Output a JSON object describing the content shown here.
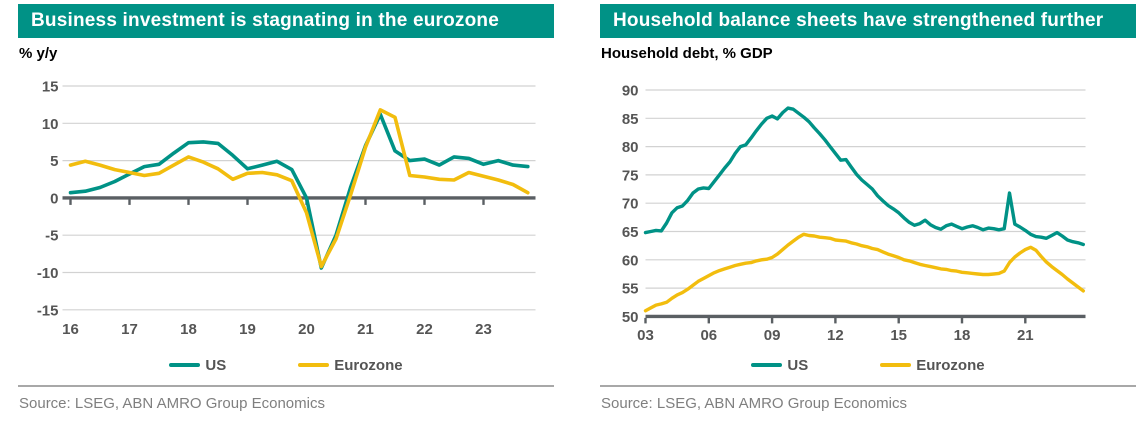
{
  "colors": {
    "teal": "#009286",
    "yellow": "#F2BD0E",
    "header_bg": "#009286",
    "header_text": "#FFFFFF",
    "axis_label": "#555555",
    "legend_text": "#545454",
    "gridline": "#D2D2D2",
    "axis_line": "#5A5F63",
    "separator": "#A8A8A8",
    "source_text": "#7F7F7F"
  },
  "panels": [
    {
      "title": "Business investment is stagnating in the eurozone",
      "subtitle": "% y/y",
      "source": "Source: LSEG, ABN AMRO Group Economics"
    },
    {
      "title": "Household balance sheets have strengthened further",
      "subtitle": "Household debt, % GDP",
      "source": "Source:  LSEG, ABN AMRO Group Economics"
    }
  ],
  "chart_data": [
    {
      "type": "line",
      "title": "Business investment is stagnating in the eurozone",
      "ylabel": "% y/y",
      "xlabel": "",
      "x_start": 2016.0,
      "x_step": 0.25,
      "ylim": [
        -15,
        15
      ],
      "y_ticks": [
        15,
        10,
        5,
        0,
        -5,
        -10,
        -15
      ],
      "baseline": 0,
      "grid": "horizontal",
      "legend_position": "bottom",
      "x_ticks": {
        "values": [
          2016,
          2017,
          2018,
          2019,
          2020,
          2021,
          2022,
          2023
        ],
        "labels": [
          "16",
          "17",
          "18",
          "19",
          "20",
          "21",
          "22",
          "23"
        ]
      },
      "series": [
        {
          "name": "US",
          "color": "teal",
          "values": [
            0.7,
            0.9,
            1.4,
            2.2,
            3.2,
            4.2,
            4.5,
            6.0,
            7.4,
            7.5,
            7.3,
            5.7,
            3.9,
            4.4,
            4.9,
            3.8,
            0.0,
            -9.4,
            -5.0,
            1.5,
            7.0,
            11.2,
            6.3,
            5.0,
            5.2,
            4.4,
            5.5,
            5.3,
            4.5,
            5.0,
            4.4,
            4.2
          ]
        },
        {
          "name": "Eurozone",
          "color": "yellow",
          "values": [
            4.4,
            4.9,
            4.4,
            3.8,
            3.4,
            3.0,
            3.3,
            4.4,
            5.5,
            4.8,
            3.9,
            2.5,
            3.3,
            3.4,
            3.1,
            2.3,
            -2.0,
            -9.2,
            -5.5,
            0.5,
            6.8,
            11.8,
            10.8,
            3.0,
            2.8,
            2.5,
            2.4,
            3.4,
            2.9,
            2.4,
            1.8,
            0.7
          ]
        }
      ]
    },
    {
      "type": "line",
      "title": "Household balance sheets have strengthened further",
      "ylabel": "Household debt, % GDP",
      "xlabel": "",
      "x_start": 2003.0,
      "x_step": 0.25,
      "ylim": [
        50,
        90
      ],
      "y_ticks": [
        90,
        85,
        80,
        75,
        70,
        65,
        60,
        55,
        50
      ],
      "baseline": 50,
      "grid": "horizontal",
      "legend_position": "bottom",
      "x_ticks": {
        "values": [
          2003,
          2006,
          2009,
          2012,
          2015,
          2018,
          2021
        ],
        "labels": [
          "03",
          "06",
          "09",
          "12",
          "15",
          "18",
          "21"
        ]
      },
      "series": [
        {
          "name": "US",
          "color": "teal",
          "values": [
            64.8,
            65.0,
            65.2,
            65.1,
            66.5,
            68.3,
            69.2,
            69.5,
            70.5,
            71.8,
            72.5,
            72.7,
            72.6,
            73.8,
            75.0,
            76.2,
            77.3,
            78.8,
            80.0,
            80.3,
            81.5,
            82.8,
            84.0,
            85.0,
            85.4,
            84.9,
            86.0,
            86.8,
            86.6,
            85.9,
            85.2,
            84.4,
            83.3,
            82.3,
            81.2,
            80.0,
            78.8,
            77.6,
            77.7,
            76.4,
            75.1,
            74.1,
            73.3,
            72.5,
            71.3,
            70.4,
            69.6,
            69.0,
            68.3,
            67.4,
            66.6,
            66.1,
            66.4,
            67.0,
            66.2,
            65.7,
            65.4,
            66.0,
            66.3,
            65.9,
            65.5,
            65.8,
            66.0,
            65.7,
            65.3,
            65.6,
            65.5,
            65.3,
            65.5,
            71.8,
            66.3,
            65.8,
            65.2,
            64.5,
            64.1,
            64.0,
            63.8,
            64.3,
            64.8,
            64.2,
            63.5,
            63.2,
            63.0,
            62.7
          ]
        },
        {
          "name": "Eurozone",
          "color": "yellow",
          "values": [
            51.0,
            51.5,
            52.0,
            52.2,
            52.5,
            53.2,
            53.8,
            54.2,
            54.8,
            55.5,
            56.2,
            56.7,
            57.2,
            57.7,
            58.1,
            58.4,
            58.7,
            59.0,
            59.2,
            59.4,
            59.5,
            59.8,
            60.0,
            60.1,
            60.4,
            61.0,
            61.8,
            62.6,
            63.3,
            64.0,
            64.5,
            64.3,
            64.2,
            64.0,
            63.9,
            63.8,
            63.5,
            63.4,
            63.3,
            63.0,
            62.8,
            62.5,
            62.3,
            62.0,
            61.8,
            61.4,
            61.0,
            60.7,
            60.4,
            60.0,
            59.8,
            59.5,
            59.2,
            59.0,
            58.8,
            58.6,
            58.4,
            58.3,
            58.1,
            58.0,
            57.8,
            57.7,
            57.6,
            57.5,
            57.4,
            57.4,
            57.5,
            57.6,
            58.0,
            59.5,
            60.5,
            61.2,
            61.8,
            62.2,
            61.7,
            60.6,
            59.6,
            58.8,
            58.1,
            57.4,
            56.6,
            55.9,
            55.2,
            54.5
          ]
        }
      ]
    }
  ]
}
